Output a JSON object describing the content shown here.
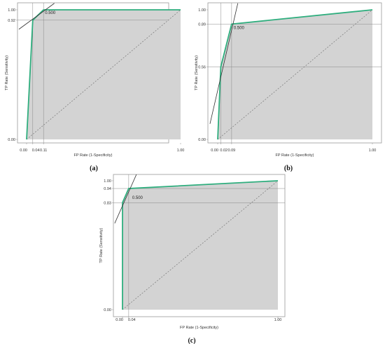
{
  "colors": {
    "roc": "#2fae7e",
    "area": "#d3d3d3",
    "frame": "#9a9a9a",
    "guide": "#888888",
    "tangent": "#333333",
    "diagonal": "#777777"
  },
  "chart_data": [
    {
      "type": "area",
      "panel_label": "(a)",
      "xlabel": "FP Rate (1-Specificity)",
      "ylabel": "TP Rate (Sensitivity)",
      "xlim": [
        0,
        1
      ],
      "ylim": [
        0,
        1
      ],
      "roc_x": [
        0.0,
        0.04,
        0.11,
        1.0
      ],
      "roc_y": [
        0.0,
        0.92,
        1.0,
        1.0
      ],
      "x_ticks": [
        "0.00",
        "0.04",
        "0.11",
        "1.00"
      ],
      "x_tick_values": [
        0.0,
        0.04,
        0.11,
        1.0
      ],
      "y_ticks": [
        "0.00",
        "0.92",
        "1.00"
      ],
      "y_tick_values": [
        0.0,
        0.92,
        1.0
      ],
      "cutoff": {
        "label": "0.500",
        "x": 0.11,
        "y": 1.0
      },
      "guide_lines": {
        "x": [
          0.04,
          0.11
        ],
        "y": [
          0.92
        ]
      },
      "tangent": {
        "x1": -0.05,
        "y1": 0.85,
        "x2": 0.18,
        "y2": 1.05
      }
    },
    {
      "type": "area",
      "panel_label": "(b)",
      "xlabel": "FP Rate (1-Specificity)",
      "ylabel": "TP Rate (Sensitivity)",
      "xlim": [
        0,
        1
      ],
      "ylim": [
        0,
        1
      ],
      "roc_x": [
        0.0,
        0.02,
        0.09,
        1.0
      ],
      "roc_y": [
        0.0,
        0.56,
        0.89,
        1.0
      ],
      "x_ticks": [
        "0.00",
        "0.02",
        "0.09",
        "1.00"
      ],
      "x_tick_values": [
        0.0,
        0.02,
        0.09,
        1.0
      ],
      "y_ticks": [
        "0.00",
        "0.56",
        "0.89",
        "1.00"
      ],
      "y_tick_values": [
        0.0,
        0.56,
        0.89,
        1.0
      ],
      "cutoff": {
        "label": "0.500",
        "x": 0.09,
        "y": 0.89
      },
      "guide_lines": {
        "x": [
          0.02,
          0.09
        ],
        "y": [
          0.56,
          0.89
        ]
      },
      "tangent": {
        "x1": -0.05,
        "y1": 0.12,
        "x2": 0.13,
        "y2": 1.05
      }
    },
    {
      "type": "area",
      "panel_label": "(c)",
      "xlabel": "FP Rate (1-Specificity)",
      "ylabel": "TP Rate (Sensitivity)",
      "xlim": [
        0,
        1
      ],
      "ylim": [
        0,
        1
      ],
      "roc_x": [
        0.0,
        0.0,
        0.04,
        1.0
      ],
      "roc_y": [
        0.0,
        0.83,
        0.94,
        1.0
      ],
      "x_ticks": [
        "0.00",
        "0.04",
        "1.00"
      ],
      "x_tick_values": [
        0.0,
        0.04,
        1.0
      ],
      "y_ticks": [
        "0.00",
        "0.83",
        "0.94",
        "1.00"
      ],
      "y_tick_values": [
        0.0,
        0.83,
        0.94,
        1.0
      ],
      "cutoff": {
        "label": "0.500",
        "x": 0.04,
        "y": 0.94
      },
      "guide_lines": {
        "x": [
          0.04
        ],
        "y": [
          0.83,
          0.94
        ]
      },
      "tangent": {
        "x1": -0.05,
        "y1": 0.67,
        "x2": 0.09,
        "y2": 1.05
      }
    }
  ]
}
